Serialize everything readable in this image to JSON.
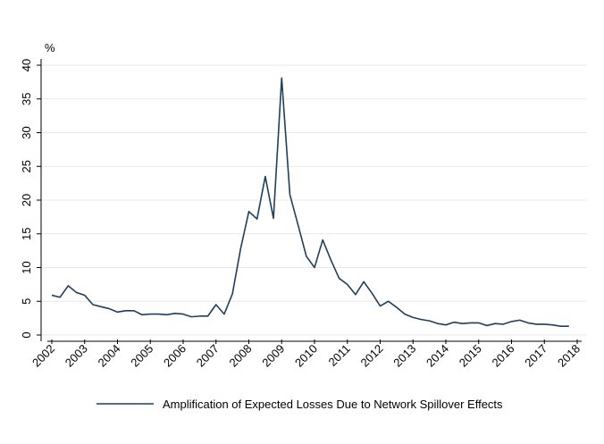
{
  "chart_data": {
    "type": "line",
    "ylabel": "%",
    "ylim": [
      0,
      40
    ],
    "yticks": [
      "0",
      "5",
      "10",
      "15",
      "20",
      "25",
      "30",
      "35",
      "40"
    ],
    "xlim": [
      2002,
      2018
    ],
    "xticks": [
      "2002",
      "2003",
      "2004",
      "2005",
      "2006",
      "2007",
      "2008",
      "2009",
      "2010",
      "2011",
      "2012",
      "2013",
      "2014",
      "2015",
      "2016",
      "2017",
      "2018"
    ],
    "grid": true,
    "legend_position": "bottom",
    "series": [
      {
        "name": "Amplification of Expected Losses Due to Network Spillover Effects",
        "color": "#1f3f5c",
        "x": [
          2002.0,
          2002.25,
          2002.5,
          2002.75,
          2003.0,
          2003.25,
          2003.5,
          2003.75,
          2004.0,
          2004.25,
          2004.5,
          2004.75,
          2005.0,
          2005.25,
          2005.5,
          2005.75,
          2006.0,
          2006.25,
          2006.5,
          2006.75,
          2007.0,
          2007.25,
          2007.5,
          2007.75,
          2008.0,
          2008.25,
          2008.5,
          2008.75,
          2009.0,
          2009.25,
          2009.5,
          2009.75,
          2010.0,
          2010.25,
          2010.5,
          2010.75,
          2011.0,
          2011.25,
          2011.5,
          2011.75,
          2012.0,
          2012.25,
          2012.5,
          2012.75,
          2013.0,
          2013.25,
          2013.5,
          2013.75,
          2014.0,
          2014.25,
          2014.5,
          2014.75,
          2015.0,
          2015.25,
          2015.5,
          2015.75,
          2016.0,
          2016.25,
          2016.5,
          2016.75,
          2017.0,
          2017.25,
          2017.5,
          2017.75
        ],
        "values": [
          5.9,
          5.6,
          7.3,
          6.3,
          5.9,
          4.5,
          4.2,
          3.9,
          3.4,
          3.6,
          3.6,
          3.0,
          3.1,
          3.1,
          3.0,
          3.2,
          3.1,
          2.7,
          2.8,
          2.8,
          4.5,
          3.1,
          6.1,
          12.8,
          18.3,
          17.2,
          23.5,
          17.3,
          38.1,
          20.8,
          16.3,
          11.7,
          10.0,
          14.1,
          11.1,
          8.4,
          7.5,
          6.0,
          7.9,
          6.2,
          4.3,
          5.0,
          4.1,
          3.1,
          2.6,
          2.3,
          2.1,
          1.7,
          1.5,
          1.9,
          1.7,
          1.8,
          1.8,
          1.4,
          1.7,
          1.6,
          2.0,
          2.2,
          1.8,
          1.6,
          1.6,
          1.5,
          1.3,
          1.3
        ]
      }
    ]
  }
}
